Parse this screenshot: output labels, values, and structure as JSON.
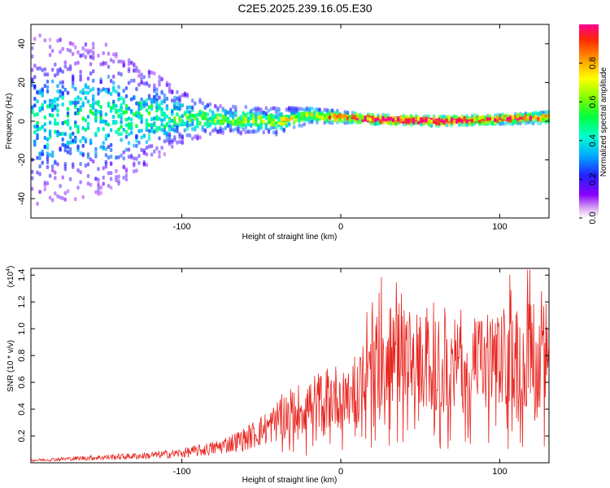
{
  "title": "C2E5.2025.239.16.05.E30",
  "chart_data": [
    {
      "type": "heatmap",
      "name": "spectrogram",
      "xlabel": "Height of straight line (km)",
      "ylabel": "Frequency (Hz)",
      "xlim": [
        -195,
        131
      ],
      "ylim": [
        -50,
        50
      ],
      "xticks": [
        -100,
        0,
        100
      ],
      "xtick_labels": [
        "-100",
        "0",
        "100"
      ],
      "yticks": [
        -40,
        -20,
        0,
        20,
        40
      ],
      "ytick_labels": [
        "-40",
        "-20",
        "0",
        "20",
        "40"
      ],
      "colorbar": {
        "label": "Normalized spectral amplitude",
        "range": [
          0,
          1
        ],
        "ticks": [
          0.0,
          0.2,
          0.4,
          0.6,
          0.8
        ],
        "tick_labels": [
          "0.0",
          "0.2",
          "0.4",
          "0.6",
          "0.8"
        ]
      },
      "band": [
        {
          "x": -195,
          "center": 0,
          "width": 90,
          "amp": 0.35
        },
        {
          "x": -150,
          "center": 2,
          "width": 80,
          "amp": 0.4
        },
        {
          "x": -104,
          "center": 2,
          "width": 30,
          "amp": 0.45
        },
        {
          "x": -80,
          "center": 1,
          "width": 14,
          "amp": 0.5
        },
        {
          "x": -40,
          "center": 0,
          "width": 14,
          "amp": 0.55
        },
        {
          "x": -20,
          "center": 3,
          "width": 8,
          "amp": 0.6
        },
        {
          "x": 0,
          "center": 2,
          "width": 6,
          "amp": 0.75
        },
        {
          "x": 20,
          "center": 1,
          "width": 5,
          "amp": 0.95
        },
        {
          "x": 60,
          "center": 0,
          "width": 5,
          "amp": 0.95
        },
        {
          "x": 100,
          "center": 1,
          "width": 5,
          "amp": 0.85
        },
        {
          "x": 131,
          "center": 2,
          "width": 6,
          "amp": 0.8
        }
      ]
    },
    {
      "type": "line",
      "name": "snr",
      "xlabel": "Height of straight line (km)",
      "ylabel": "SNR (10 * v/v)",
      "multiplier_label": "(x10",
      "multiplier_exponent": "4",
      "multiplier_close": ")",
      "xlim": [
        -195,
        131
      ],
      "ylim": [
        0,
        1.45
      ],
      "xticks": [
        -100,
        0,
        100
      ],
      "xtick_labels": [
        "-100",
        "0",
        "100"
      ],
      "yticks": [
        0.2,
        0.4,
        0.6,
        0.8,
        1.0,
        1.2,
        1.4
      ],
      "ytick_labels": [
        "0.2",
        "0.4",
        "0.6",
        "0.8",
        "1.0",
        "1.2",
        "1.4"
      ],
      "color": "#e8241e",
      "envelope": {
        "x": [
          -195,
          -160,
          -120,
          -100,
          -80,
          -60,
          -45,
          -35,
          -25,
          -15,
          -5,
          0,
          10,
          20,
          30,
          40,
          60,
          80,
          100,
          120,
          131
        ],
        "y": [
          0.02,
          0.04,
          0.06,
          0.08,
          0.12,
          0.2,
          0.3,
          0.4,
          0.45,
          0.5,
          0.55,
          0.55,
          0.65,
          0.8,
          0.9,
          0.85,
          0.8,
          0.8,
          0.85,
          0.9,
          0.9
        ]
      }
    }
  ]
}
